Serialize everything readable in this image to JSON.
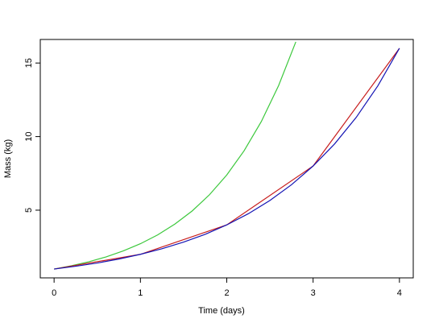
{
  "chart_data": {
    "type": "line",
    "xlabel": "Time (days)",
    "ylabel": "Mass (kg)",
    "xlim": [
      -0.16,
      4.16
    ],
    "ylim": [
      0.4,
      16.6
    ],
    "xticks": [
      0,
      1,
      2,
      3,
      4
    ],
    "yticks": [
      5,
      10,
      15
    ],
    "series": [
      {
        "color": "#3cc83c",
        "x": [
          0,
          0.2,
          0.4,
          0.6,
          0.8,
          1,
          1.2,
          1.4,
          1.6,
          1.8,
          2,
          2.2,
          2.4,
          2.6,
          2.8
        ],
        "values": [
          1,
          1.22,
          1.49,
          1.82,
          2.23,
          2.72,
          3.32,
          4.06,
          4.95,
          6.05,
          7.39,
          9.03,
          11.02,
          13.46,
          16.44
        ]
      },
      {
        "color": "#c81e1e",
        "x": [
          0,
          1,
          2,
          3,
          4
        ],
        "values": [
          1,
          2,
          4,
          8,
          16
        ]
      },
      {
        "color": "#1414b4",
        "x": [
          0,
          0.25,
          0.5,
          0.75,
          1,
          1.25,
          1.5,
          1.75,
          2,
          2.25,
          2.5,
          2.75,
          3,
          3.25,
          3.5,
          3.75,
          4
        ],
        "values": [
          1,
          1.19,
          1.41,
          1.68,
          2,
          2.38,
          2.83,
          3.36,
          4,
          4.76,
          5.66,
          6.73,
          8,
          9.51,
          11.31,
          13.45,
          16
        ]
      }
    ]
  }
}
